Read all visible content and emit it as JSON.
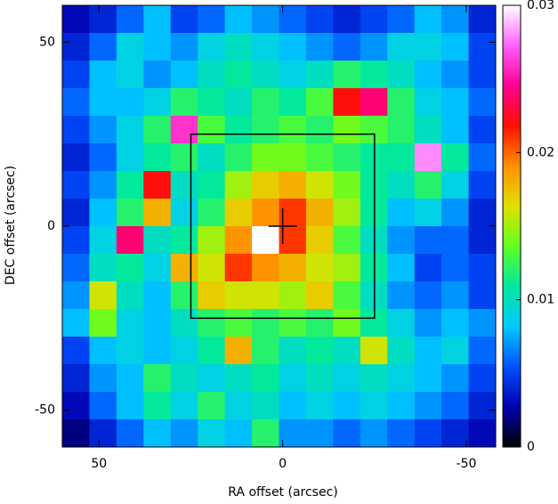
{
  "chart_data": {
    "type": "heatmap",
    "xlabel": "RA offset (arcsec)",
    "ylabel": "DEC offset (arcsec)",
    "xlim": [
      60,
      -58
    ],
    "ylim": [
      -60,
      60
    ],
    "xticks": [
      50,
      0,
      -50
    ],
    "yticks": [
      -50,
      0,
      50
    ],
    "clim": [
      0,
      0.03
    ],
    "cticks": [
      0,
      0.01,
      0.02,
      0.03
    ],
    "colormap": [
      "#000000",
      "#0000b0",
      "#0050ff",
      "#00c8ff",
      "#00e8a0",
      "#60ff20",
      "#e0e000",
      "#ff9000",
      "#ff1000",
      "#ff0090",
      "#ff60ff",
      "#ffffff"
    ],
    "box": {
      "x": [
        25,
        -25
      ],
      "y": [
        25,
        -25
      ]
    },
    "marker": [
      0,
      0
    ],
    "values": [
      [
        0.003,
        0.004,
        0.006,
        0.008,
        0.005,
        0.006,
        0.008,
        0.007,
        0.006,
        0.005,
        0.004,
        0.005,
        0.006,
        0.008,
        0.007,
        0.004
      ],
      [
        0.004,
        0.006,
        0.009,
        0.008,
        0.007,
        0.009,
        0.01,
        0.009,
        0.008,
        0.007,
        0.006,
        0.007,
        0.009,
        0.009,
        0.008,
        0.005
      ],
      [
        0.005,
        0.008,
        0.009,
        0.007,
        0.008,
        0.01,
        0.011,
        0.01,
        0.009,
        0.01,
        0.012,
        0.011,
        0.01,
        0.008,
        0.007,
        0.005
      ],
      [
        0.006,
        0.008,
        0.008,
        0.009,
        0.012,
        0.011,
        0.01,
        0.012,
        0.011,
        0.013,
        0.022,
        0.024,
        0.012,
        0.009,
        0.008,
        0.006
      ],
      [
        0.005,
        0.007,
        0.009,
        0.012,
        0.026,
        0.013,
        0.011,
        0.012,
        0.013,
        0.012,
        0.014,
        0.013,
        0.012,
        0.01,
        0.008,
        0.005
      ],
      [
        0.004,
        0.006,
        0.009,
        0.011,
        0.012,
        0.01,
        0.012,
        0.014,
        0.014,
        0.013,
        0.012,
        0.011,
        0.011,
        0.028,
        0.011,
        0.006
      ],
      [
        0.005,
        0.007,
        0.011,
        0.022,
        0.01,
        0.011,
        0.015,
        0.017,
        0.018,
        0.016,
        0.014,
        0.011,
        0.01,
        0.012,
        0.009,
        0.005
      ],
      [
        0.004,
        0.008,
        0.012,
        0.018,
        0.009,
        0.012,
        0.017,
        0.019,
        0.021,
        0.018,
        0.015,
        0.011,
        0.008,
        0.009,
        0.007,
        0.004
      ],
      [
        0.005,
        0.009,
        0.024,
        0.01,
        0.011,
        0.015,
        0.019,
        0.03,
        0.021,
        0.017,
        0.013,
        0.01,
        0.007,
        0.006,
        0.006,
        0.004
      ],
      [
        0.006,
        0.01,
        0.011,
        0.009,
        0.018,
        0.016,
        0.021,
        0.019,
        0.018,
        0.016,
        0.015,
        0.011,
        0.008,
        0.005,
        0.006,
        0.005
      ],
      [
        0.007,
        0.016,
        0.01,
        0.008,
        0.012,
        0.017,
        0.016,
        0.016,
        0.015,
        0.017,
        0.013,
        0.01,
        0.007,
        0.006,
        0.007,
        0.005
      ],
      [
        0.008,
        0.014,
        0.009,
        0.008,
        0.01,
        0.012,
        0.013,
        0.012,
        0.013,
        0.012,
        0.014,
        0.011,
        0.009,
        0.007,
        0.008,
        0.007
      ],
      [
        0.005,
        0.008,
        0.009,
        0.008,
        0.009,
        0.011,
        0.018,
        0.012,
        0.01,
        0.011,
        0.01,
        0.016,
        0.01,
        0.008,
        0.009,
        0.006
      ],
      [
        0.004,
        0.007,
        0.008,
        0.012,
        0.01,
        0.009,
        0.01,
        0.011,
        0.009,
        0.01,
        0.009,
        0.01,
        0.009,
        0.008,
        0.007,
        0.005
      ],
      [
        0.003,
        0.006,
        0.008,
        0.011,
        0.009,
        0.012,
        0.009,
        0.01,
        0.008,
        0.009,
        0.008,
        0.009,
        0.008,
        0.007,
        0.006,
        0.004
      ],
      [
        0.002,
        0.004,
        0.006,
        0.008,
        0.007,
        0.009,
        0.008,
        0.012,
        0.007,
        0.007,
        0.006,
        0.007,
        0.006,
        0.005,
        0.004,
        0.003
      ]
    ]
  }
}
